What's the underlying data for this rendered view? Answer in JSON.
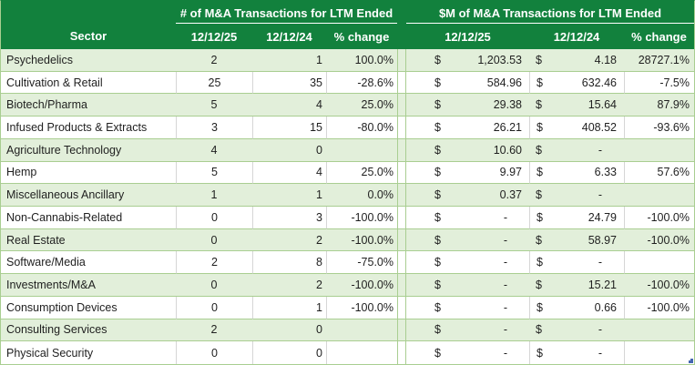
{
  "header": {
    "sector_label": "Sector",
    "left_group_title": "# of M&A Transactions for LTM Ended",
    "right_group_title": "$M of M&A Transactions for LTM Ended",
    "col_current": "12/12/25",
    "col_prior": "12/12/24",
    "col_pct": "% change"
  },
  "labels": {
    "currency": "$"
  },
  "colors": {
    "header_green": "#12813D",
    "row_alt_green": "#E2EFDA",
    "grid_green": "#A9CE91",
    "gridline_gray": "#D6D6D6",
    "text": "#1F1F1F",
    "table_handle_blue": "#4466B0"
  },
  "icons": {
    "corner": "excel-table-resize-handle"
  },
  "rows": [
    {
      "sector": "Psychedelics",
      "count_current": "2",
      "count_prior": "1",
      "count_pct": "100.0%",
      "amount_current": "1,203.53",
      "amount_prior": "4.18",
      "amount_pct": "28727.1%"
    },
    {
      "sector": "Cultivation & Retail",
      "count_current": "25",
      "count_prior": "35",
      "count_pct": "-28.6%",
      "amount_current": "584.96",
      "amount_prior": "632.46",
      "amount_pct": "-7.5%"
    },
    {
      "sector": "Biotech/Pharma",
      "count_current": "5",
      "count_prior": "4",
      "count_pct": "25.0%",
      "amount_current": "29.38",
      "amount_prior": "15.64",
      "amount_pct": "87.9%"
    },
    {
      "sector": "Infused Products & Extracts",
      "count_current": "3",
      "count_prior": "15",
      "count_pct": "-80.0%",
      "amount_current": "26.21",
      "amount_prior": "408.52",
      "amount_pct": "-93.6%"
    },
    {
      "sector": "Agriculture Technology",
      "count_current": "4",
      "count_prior": "0",
      "count_pct": "",
      "amount_current": "10.60",
      "amount_prior": "-",
      "amount_pct": ""
    },
    {
      "sector": "Hemp",
      "count_current": "5",
      "count_prior": "4",
      "count_pct": "25.0%",
      "amount_current": "9.97",
      "amount_prior": "6.33",
      "amount_pct": "57.6%"
    },
    {
      "sector": "Miscellaneous Ancillary",
      "count_current": "1",
      "count_prior": "1",
      "count_pct": "0.0%",
      "amount_current": "0.37",
      "amount_prior": "-",
      "amount_pct": ""
    },
    {
      "sector": "Non-Cannabis-Related",
      "count_current": "0",
      "count_prior": "3",
      "count_pct": "-100.0%",
      "amount_current": "-",
      "amount_prior": "24.79",
      "amount_pct": "-100.0%"
    },
    {
      "sector": "Real Estate",
      "count_current": "0",
      "count_prior": "2",
      "count_pct": "-100.0%",
      "amount_current": "-",
      "amount_prior": "58.97",
      "amount_pct": "-100.0%"
    },
    {
      "sector": "Software/Media",
      "count_current": "2",
      "count_prior": "8",
      "count_pct": "-75.0%",
      "amount_current": "-",
      "amount_prior": "-",
      "amount_pct": ""
    },
    {
      "sector": "Investments/M&A",
      "count_current": "0",
      "count_prior": "2",
      "count_pct": "-100.0%",
      "amount_current": "-",
      "amount_prior": "15.21",
      "amount_pct": "-100.0%"
    },
    {
      "sector": "Consumption Devices",
      "count_current": "0",
      "count_prior": "1",
      "count_pct": "-100.0%",
      "amount_current": "-",
      "amount_prior": "0.66",
      "amount_pct": "-100.0%"
    },
    {
      "sector": "Consulting Services",
      "count_current": "2",
      "count_prior": "0",
      "count_pct": "",
      "amount_current": "-",
      "amount_prior": "-",
      "amount_pct": ""
    },
    {
      "sector": "Physical Security",
      "count_current": "0",
      "count_prior": "0",
      "count_pct": "",
      "amount_current": "-",
      "amount_prior": "-",
      "amount_pct": ""
    }
  ]
}
